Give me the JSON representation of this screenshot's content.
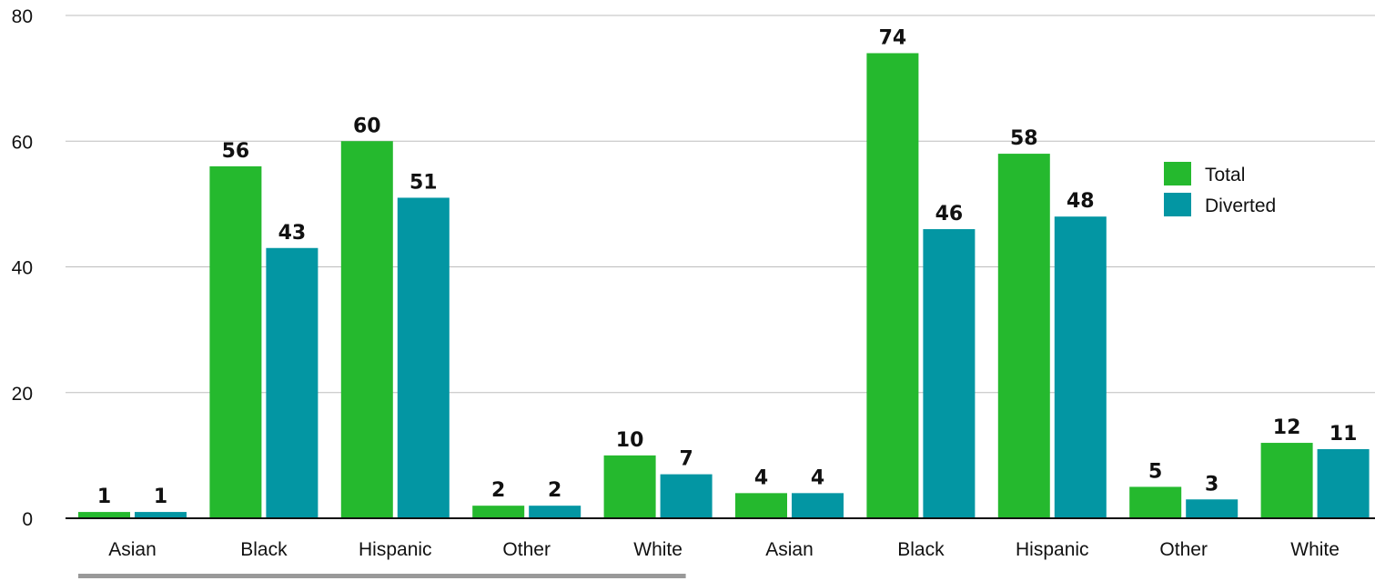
{
  "chart_data": {
    "type": "bar",
    "categories": [
      "Asian",
      "Black",
      "Hispanic",
      "Other",
      "White",
      "Asian",
      "Black",
      "Hispanic",
      "Other",
      "White"
    ],
    "series": [
      {
        "name": "Total",
        "color": "#25b92e",
        "values": [
          1,
          56,
          60,
          2,
          10,
          4,
          74,
          58,
          5,
          12
        ]
      },
      {
        "name": "Diverted",
        "color": "#0396a3",
        "values": [
          1,
          43,
          51,
          2,
          7,
          4,
          46,
          48,
          3,
          11
        ]
      }
    ],
    "ylim": [
      0,
      80
    ],
    "yticks": [
      0,
      20,
      40,
      60,
      80
    ],
    "grid": true,
    "legend_position": "right",
    "group_bracket": {
      "under_categories": [
        0,
        4
      ],
      "color": "#999999"
    }
  }
}
